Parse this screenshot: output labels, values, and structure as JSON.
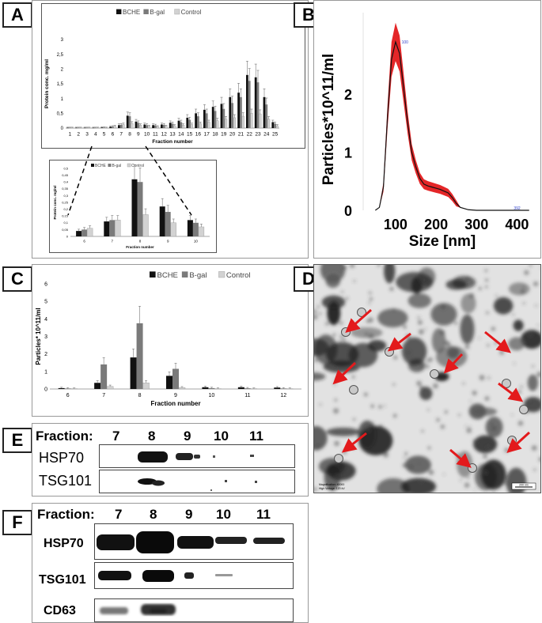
{
  "panels": {
    "a": "A",
    "b": "B",
    "c": "C",
    "d": "D",
    "e": "E",
    "f": "F"
  },
  "chart_data": [
    {
      "panel": "A",
      "type": "bar",
      "categories": [
        "1",
        "2",
        "3",
        "4",
        "5",
        "6",
        "7",
        "8",
        "9",
        "10",
        "11",
        "12",
        "13",
        "14",
        "15",
        "16",
        "17",
        "18",
        "19",
        "20",
        "21",
        "22",
        "23",
        "24",
        "25"
      ],
      "series": [
        {
          "name": "BCHE",
          "values": [
            0.01,
            0.01,
            0.01,
            0.01,
            0.02,
            0.04,
            0.1,
            0.42,
            0.22,
            0.12,
            0.1,
            0.12,
            0.18,
            0.25,
            0.35,
            0.5,
            0.62,
            0.72,
            0.82,
            1.05,
            1.2,
            1.8,
            1.72,
            1.05,
            0.2
          ]
        },
        {
          "name": "B-gal",
          "values": [
            0.01,
            0.01,
            0.01,
            0.01,
            0.02,
            0.05,
            0.11,
            0.4,
            0.18,
            0.1,
            0.09,
            0.11,
            0.15,
            0.2,
            0.28,
            0.4,
            0.5,
            0.58,
            0.65,
            0.85,
            1.05,
            1.6,
            1.55,
            0.8,
            0.15
          ]
        },
        {
          "name": "Control",
          "values": [
            0.01,
            0.01,
            0.01,
            0.01,
            0.01,
            0.06,
            0.12,
            0.16,
            0.1,
            0.06,
            0.05,
            0.06,
            0.08,
            0.1,
            0.12,
            0.15,
            0.2,
            0.25,
            0.3,
            0.35,
            0.4,
            0.5,
            0.48,
            0.3,
            0.08
          ]
        }
      ],
      "xlabel": "Fraction number",
      "ylabel": "Protein conc. mg/ml",
      "ylim": [
        0,
        3
      ],
      "yticks": [
        "0",
        "0,5",
        "1",
        "1,5",
        "2",
        "2,5",
        "3"
      ],
      "legend": "top"
    },
    {
      "panel": "A-inset",
      "type": "bar",
      "categories": [
        "6",
        "7",
        "8",
        "9",
        "10"
      ],
      "series": [
        {
          "name": "BCHE",
          "values": [
            0.04,
            0.11,
            0.42,
            0.22,
            0.12
          ]
        },
        {
          "name": "B-gal",
          "values": [
            0.05,
            0.12,
            0.4,
            0.18,
            0.1
          ]
        },
        {
          "name": "Control",
          "values": [
            0.06,
            0.12,
            0.16,
            0.1,
            0.07
          ]
        }
      ],
      "xlabel": "Fraction number",
      "ylabel": "Protein conc. mg/ml",
      "ylim": [
        0,
        0.5
      ],
      "yticks": [
        "0",
        "0,05",
        "0,1",
        "0,15",
        "0,2",
        "0,25",
        "0,3",
        "0,35",
        "0,4",
        "0,45",
        "0,5"
      ],
      "legend": "top"
    },
    {
      "panel": "B",
      "type": "line",
      "x": [
        50,
        60,
        70,
        80,
        90,
        100,
        110,
        120,
        130,
        140,
        150,
        160,
        170,
        180,
        190,
        200,
        210,
        220,
        230,
        240,
        250,
        260,
        280,
        300,
        350,
        400,
        430
      ],
      "values": [
        0,
        0.05,
        0.4,
        1.6,
        2.6,
        2.9,
        2.7,
        2.1,
        1.5,
        1.0,
        0.75,
        0.55,
        0.45,
        0.42,
        0.4,
        0.38,
        0.36,
        0.33,
        0.3,
        0.22,
        0.12,
        0.05,
        0.01,
        0,
        0,
        0,
        0
      ],
      "xlabel": "Size [nm]",
      "ylabel": "Particles*10^11/ml",
      "xticks": [
        "100",
        "200",
        "300",
        "400"
      ],
      "yticks": [
        "0",
        "1",
        "2"
      ],
      "peak_label": "100",
      "end_label": "392"
    },
    {
      "panel": "C",
      "type": "bar",
      "categories": [
        "6",
        "7",
        "8",
        "9",
        "10",
        "11",
        "12"
      ],
      "series": [
        {
          "name": "BCHE",
          "values": [
            0.05,
            0.35,
            1.8,
            0.75,
            0.1,
            0.1,
            0.08
          ]
        },
        {
          "name": "B-gal",
          "values": [
            0.03,
            1.4,
            3.75,
            1.15,
            0.05,
            0.04,
            0.03
          ]
        },
        {
          "name": "Control",
          "values": [
            0.02,
            0.15,
            0.35,
            0.08,
            0.02,
            0.02,
            0.02
          ]
        }
      ],
      "xlabel": "Fraction number",
      "ylabel": "Particles* 10^11/ml",
      "ylim": [
        0,
        6
      ],
      "yticks": [
        "0",
        "1",
        "2",
        "3",
        "4",
        "5",
        "6"
      ],
      "legend": "top"
    }
  ],
  "tem": {
    "magnification": "Magnification: 40000",
    "voltage": "High Voltage: 120 kV",
    "scalebar": "200 nm"
  },
  "blotE": {
    "fraction_label": "Fraction:",
    "fractions": [
      "7",
      "8",
      "9",
      "10",
      "11"
    ],
    "rows": [
      "HSP70",
      "TSG101"
    ]
  },
  "blotF": {
    "fraction_label": "Fraction:",
    "fractions": [
      "7",
      "8",
      "9",
      "10",
      "11"
    ],
    "rows": [
      "HSP70",
      "TSG101",
      "CD63"
    ]
  },
  "colors": {
    "bche": "#111111",
    "bgal": "#7a7a7a",
    "control": "#d2d2d2",
    "nta": "#e31a1c"
  }
}
